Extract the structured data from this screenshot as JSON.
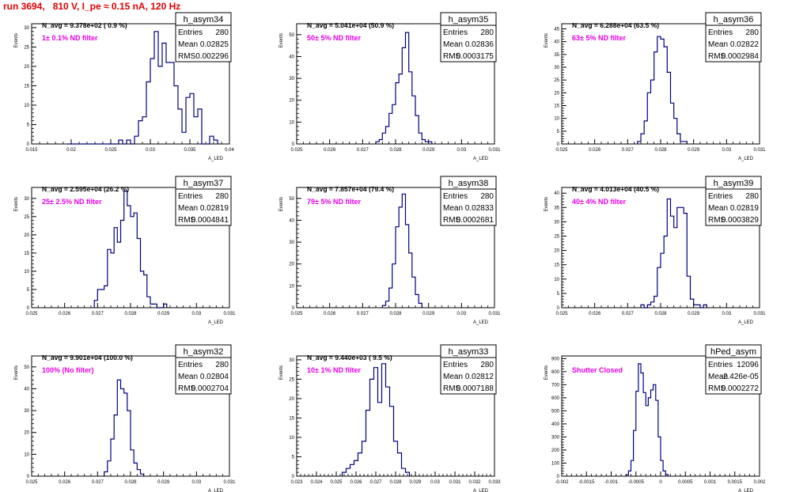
{
  "page": {
    "title": "run 3694,   810 V, I_pe ≈ 0.15 nA, 120 Hz"
  },
  "chart_data": [
    {
      "type": "histogram",
      "name": "h_asym34",
      "annotation": "N_avg = 9.378e+02 ( 0.9 %)",
      "filter_label": "1± 0.1% ND filter",
      "stats": {
        "entries_label": "Entries",
        "entries": "280",
        "mean_label": "Mean",
        "mean": "0.02825",
        "rms_label": "RMS",
        "rms": "0.002296"
      },
      "ylabel": "Events",
      "xlabel": "A_LED",
      "xlim": [
        0.015,
        0.04
      ],
      "ylim": [
        0,
        31
      ],
      "xticks": [
        "0.015",
        "0.02",
        "0.025",
        "0.03",
        "0.035",
        "0.04"
      ],
      "yticks": [
        "0",
        "5",
        "10",
        "15",
        "20",
        "25",
        "30"
      ],
      "bin_edges_start": 0.0195,
      "bin_width": 0.0005,
      "counts": [
        0,
        0,
        0,
        0,
        0,
        0,
        0,
        0,
        0,
        0,
        0,
        0,
        0,
        1,
        0,
        1,
        0,
        2,
        6,
        7,
        16,
        22,
        29,
        20,
        26,
        21,
        21,
        15,
        9,
        3,
        12,
        13,
        7,
        9,
        0,
        0,
        2,
        1
      ]
    },
    {
      "type": "histogram",
      "name": "h_asym35",
      "annotation": "N_avg = 5.041e+04 (50.9 %)",
      "filter_label": "50± 5% ND filter",
      "stats": {
        "entries_label": "Entries",
        "entries": "280",
        "mean_label": "Mean",
        "mean": "0.02836",
        "rms_label": "RMS",
        "rms": "0.0003175"
      },
      "ylabel": "Events",
      "xlabel": "A_LED",
      "xlim": [
        0.025,
        0.031
      ],
      "ylim": [
        0,
        55
      ],
      "xticks": [
        "0.025",
        "0.026",
        "0.027",
        "0.028",
        "0.029",
        "0.03",
        "0.031"
      ],
      "yticks": [
        "0",
        "10",
        "20",
        "30",
        "40",
        "50"
      ],
      "bin_edges_start": 0.0274,
      "bin_width": 0.0001,
      "counts": [
        1,
        2,
        5,
        8,
        14,
        18,
        28,
        32,
        44,
        51,
        33,
        22,
        13,
        5,
        2,
        1,
        1
      ]
    },
    {
      "type": "histogram",
      "name": "h_asym36",
      "annotation": "N_avg = 6.288e+04 (63.5 %)",
      "filter_label": "63± 5% ND filter",
      "stats": {
        "entries_label": "Entries",
        "entries": "280",
        "mean_label": "Mean",
        "mean": "0.02822",
        "rms_label": "RMS",
        "rms": "0.0002984"
      },
      "ylabel": "Events",
      "xlabel": "A_LED",
      "xlim": [
        0.025,
        0.031
      ],
      "ylim": [
        0,
        47
      ],
      "xticks": [
        "0.025",
        "0.026",
        "0.027",
        "0.028",
        "0.029",
        "0.03",
        "0.031"
      ],
      "yticks": [
        "0",
        "5",
        "10",
        "15",
        "20",
        "25",
        "30",
        "35",
        "40",
        "45"
      ],
      "bin_edges_start": 0.0273,
      "bin_width": 0.0001,
      "counts": [
        1,
        4,
        9,
        20,
        25,
        36,
        42,
        41,
        38,
        28,
        16,
        10,
        4,
        1,
        1
      ]
    },
    {
      "type": "histogram",
      "name": "h_asym37",
      "annotation": "N_avg = 2.595e+04 (26.2 %)",
      "filter_label": "25± 2.5% ND filter",
      "stats": {
        "entries_label": "Entries",
        "entries": "280",
        "mean_label": "Mean",
        "mean": "0.02819",
        "rms_label": "RMS",
        "rms": "0.0004841"
      },
      "ylabel": "Events",
      "xlabel": "A_LED",
      "xlim": [
        0.025,
        0.031
      ],
      "ylim": [
        0,
        33
      ],
      "xticks": [
        "0.025",
        "0.026",
        "0.027",
        "0.028",
        "0.029",
        "0.03",
        "0.031"
      ],
      "yticks": [
        "0",
        "5",
        "10",
        "15",
        "20",
        "25",
        "30"
      ],
      "bin_edges_start": 0.0269,
      "bin_width": 0.0001,
      "counts": [
        2,
        5,
        5,
        6,
        16,
        15,
        22,
        18,
        24,
        32,
        28,
        25,
        26,
        19,
        10,
        9,
        3,
        1,
        1,
        0,
        0,
        1
      ]
    },
    {
      "type": "histogram",
      "name": "h_asym38",
      "annotation": "N_avg = 7.857e+04 (79.4 %)",
      "filter_label": "79± 5% ND filter",
      "stats": {
        "entries_label": "Entries",
        "entries": "280",
        "mean_label": "Mean",
        "mean": "0.02833",
        "rms_label": "RMS",
        "rms": "0.0002681"
      },
      "ylabel": "Events",
      "xlabel": "A_LED",
      "xlim": [
        0.025,
        0.031
      ],
      "ylim": [
        0,
        55
      ],
      "xticks": [
        "0.025",
        "0.026",
        "0.027",
        "0.028",
        "0.029",
        "0.03",
        "0.031"
      ],
      "yticks": [
        "0",
        "10",
        "20",
        "30",
        "40",
        "50"
      ],
      "bin_edges_start": 0.0276,
      "bin_width": 0.0001,
      "counts": [
        1,
        3,
        9,
        20,
        37,
        46,
        52,
        38,
        25,
        14,
        6,
        2
      ]
    },
    {
      "type": "histogram",
      "name": "h_asym39",
      "annotation": "N_avg = 4.013e+04 (40.5 %)",
      "filter_label": "40± 4% ND filter",
      "stats": {
        "entries_label": "Entries",
        "entries": "280",
        "mean_label": "Mean",
        "mean": "0.02819",
        "rms_label": "RMS",
        "rms": "0.0003829"
      },
      "ylabel": "Events",
      "xlabel": "A_LED",
      "xlim": [
        0.025,
        0.031
      ],
      "ylim": [
        0,
        42
      ],
      "xticks": [
        "0.025",
        "0.026",
        "0.027",
        "0.028",
        "0.029",
        "0.03",
        "0.031"
      ],
      "yticks": [
        "0",
        "5",
        "10",
        "15",
        "20",
        "25",
        "30",
        "35",
        "40"
      ],
      "bin_edges_start": 0.0274,
      "bin_width": 0.0001,
      "counts": [
        1,
        0,
        1,
        2,
        4,
        14,
        19,
        25,
        38,
        32,
        28,
        35,
        35,
        33,
        11,
        3,
        1,
        1,
        0,
        1
      ]
    },
    {
      "type": "histogram",
      "name": "h_asym32",
      "annotation": "N_avg = 9.901e+04 (100.0 %)",
      "filter_label": "100% (No filter)",
      "stats": {
        "entries_label": "Entries",
        "entries": "280",
        "mean_label": "Mean",
        "mean": "0.02804",
        "rms_label": "RMS",
        "rms": "0.0002704"
      },
      "ylabel": "Events",
      "xlabel": "A_LED",
      "xlim": [
        0.025,
        0.031
      ],
      "ylim": [
        0,
        55
      ],
      "xticks": [
        "0.025",
        "0.026",
        "0.027",
        "0.028",
        "0.029",
        "0.03",
        "0.031"
      ],
      "yticks": [
        "0",
        "10",
        "20",
        "30",
        "40",
        "50"
      ],
      "bin_edges_start": 0.0272,
      "bin_width": 0.0001,
      "counts": [
        2,
        7,
        17,
        28,
        44,
        40,
        38,
        30,
        12,
        6,
        3,
        1
      ]
    },
    {
      "type": "histogram",
      "name": "h_asym33",
      "annotation": "N_avg = 9.440e+03 ( 9.5 %)",
      "filter_label": "10± 1% ND filter",
      "stats": {
        "entries_label": "Entries",
        "entries": "280",
        "mean_label": "Mean",
        "mean": "0.02812",
        "rms_label": "RMS",
        "rms": "0.0007188"
      },
      "ylabel": "Events",
      "xlabel": "A_LED",
      "xlim": [
        0.023,
        0.033
      ],
      "ylim": [
        0,
        31
      ],
      "xticks": [
        "0.023",
        "0.024",
        "0.025",
        "0.026",
        "0.027",
        "0.028",
        "0.029",
        "0.03",
        "0.031",
        "0.032",
        "0.033"
      ],
      "yticks": [
        "0",
        "5",
        "10",
        "15",
        "20",
        "25",
        "30"
      ],
      "bin_edges_start": 0.0253,
      "bin_width": 0.0002,
      "counts": [
        1,
        2,
        3,
        4,
        6,
        9,
        17,
        25,
        28,
        19,
        29,
        23,
        18,
        9,
        6,
        2,
        1
      ]
    },
    {
      "type": "histogram",
      "name": "hPed_asym",
      "annotation": "",
      "filter_label": "Shutter Closed",
      "stats": {
        "entries_label": "Entries",
        "entries": "12096",
        "mean_label": "Mean",
        "mean": "-2.426e-05",
        "rms_label": "RMS",
        "rms": "0.0002272"
      },
      "ylabel": "Events",
      "xlabel": "A_LED",
      "xlim": [
        -0.002,
        0.002
      ],
      "ylim": [
        0,
        920
      ],
      "xticks": [
        "-0.002",
        "-0.0015",
        "-0.001",
        "-0.0005",
        "0",
        "0.0005",
        "0.001",
        "0.0015",
        "0.002"
      ],
      "yticks": [
        "0",
        "100",
        "200",
        "300",
        "400",
        "500",
        "600",
        "700",
        "800",
        "900"
      ],
      "bin_edges_start": -0.0007,
      "bin_width": 5e-05,
      "counts": [
        10,
        40,
        120,
        350,
        650,
        860,
        790,
        640,
        540,
        600,
        660,
        700,
        580,
        300,
        120,
        40,
        12
      ]
    }
  ]
}
